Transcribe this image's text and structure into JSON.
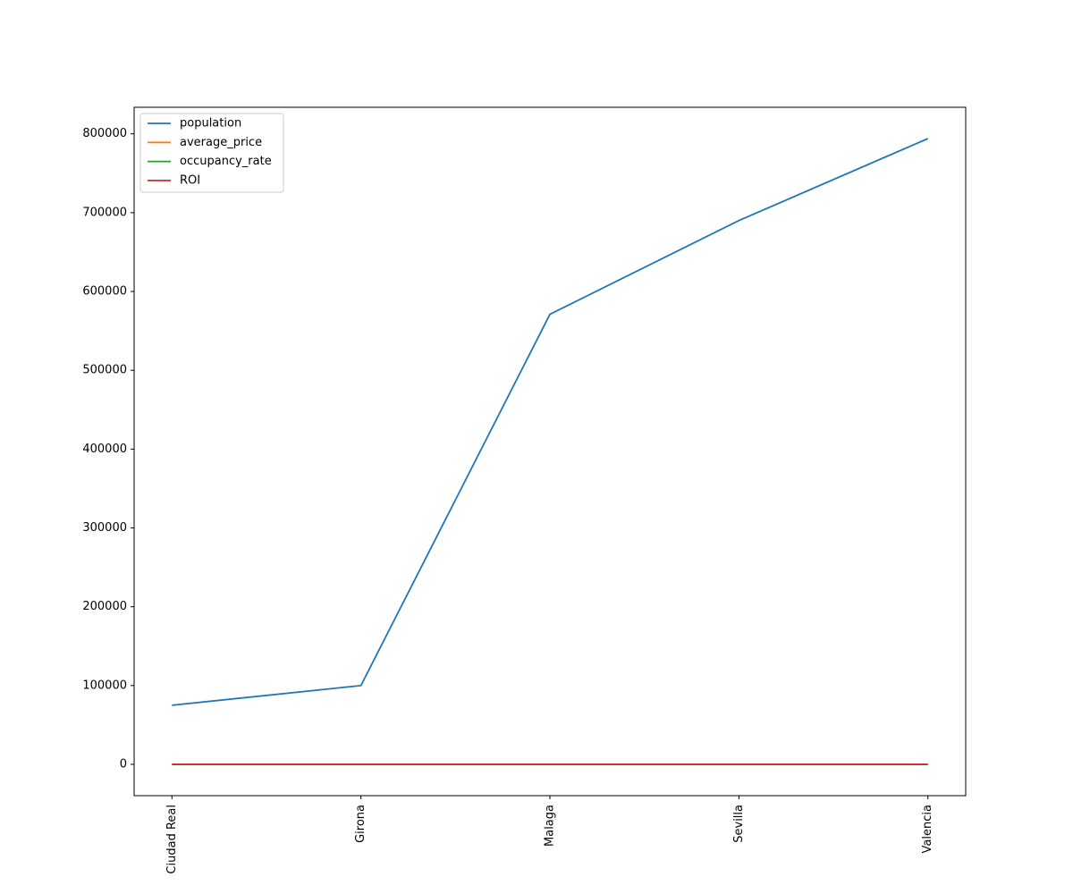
{
  "chart_data": {
    "type": "line",
    "categories": [
      "Ciudad Real",
      "Girona",
      "Malaga",
      "Sevilla",
      "Valencia"
    ],
    "series": [
      {
        "name": "population",
        "color": "#1f77b4",
        "values": [
          75000,
          100000,
          571000,
          690000,
          794000
        ]
      },
      {
        "name": "average_price",
        "color": "#ff7f0e",
        "values": [
          0,
          0,
          0,
          0,
          0
        ]
      },
      {
        "name": "occupancy_rate",
        "color": "#2ca02c",
        "values": [
          0,
          0,
          0,
          0,
          0
        ]
      },
      {
        "name": "ROI",
        "color": "#d62728",
        "values": [
          0,
          0,
          0,
          0,
          0
        ]
      }
    ],
    "ylim": [
      -39700,
      833700
    ],
    "yticks": [
      0,
      100000,
      200000,
      300000,
      400000,
      500000,
      600000,
      700000,
      800000
    ],
    "legend": "upper left"
  }
}
